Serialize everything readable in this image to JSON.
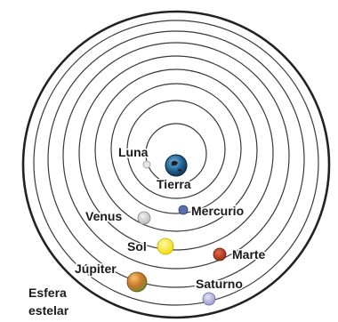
{
  "labels": {
    "luna": "Luna",
    "tierra": "Tierra",
    "venus": "Venus",
    "mercurio": "Mercurio",
    "sol": "Sol",
    "marte": "Marte",
    "jupiter": "Júpiter",
    "saturno": "Saturno",
    "esfera_line1": "Esfera",
    "esfera_line2": "estelar"
  },
  "colors": {
    "tierra": "#1f5f8f",
    "luna": "#dcdcdc",
    "mercurio": "#5a6fae",
    "venus": "#cfcfcf",
    "sol": "#f6e21a",
    "marte": "#b8331b",
    "jupiter": "#c98a2e",
    "saturno": "#b9b6e2"
  }
}
